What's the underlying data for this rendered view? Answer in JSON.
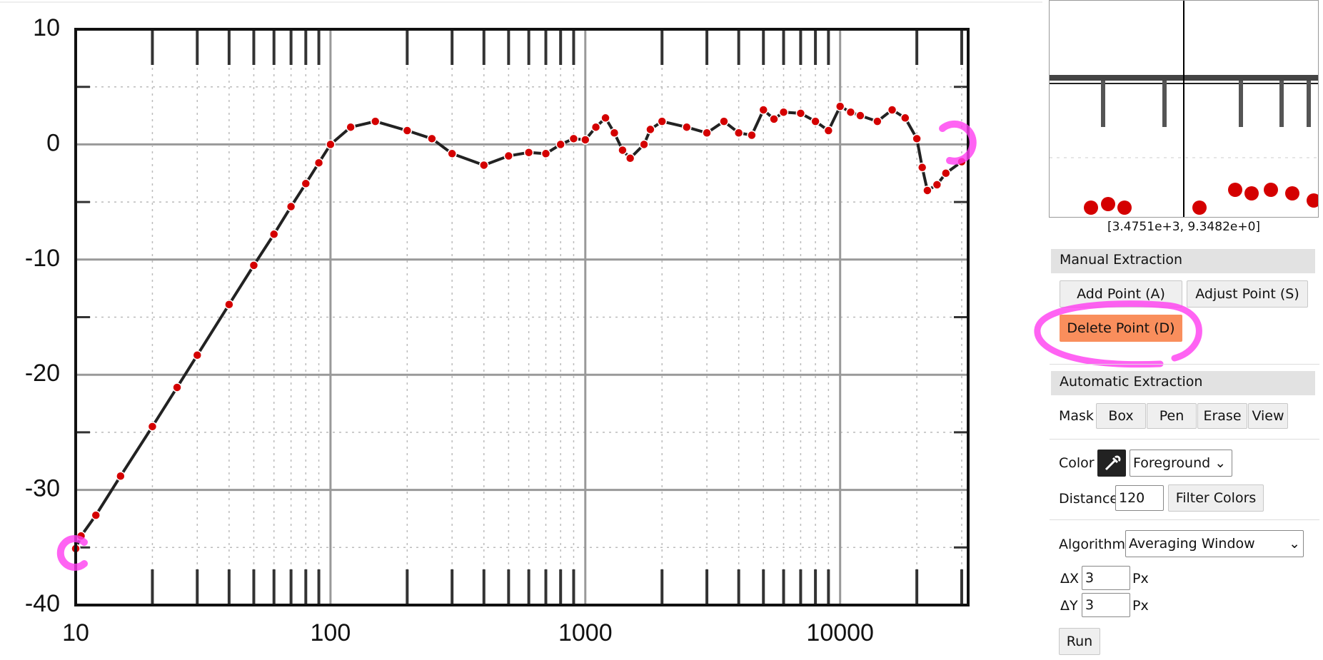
{
  "chart_data": {
    "type": "scatter",
    "log_x": true,
    "grid": true,
    "color": "#d40000",
    "xlim": [
      10,
      31800
    ],
    "ylim": [
      -40,
      10
    ],
    "xticks": [
      10,
      100,
      1000,
      10000
    ],
    "yticks": [
      10,
      0,
      -10,
      -20,
      -30,
      -40
    ],
    "x_minor_ticks": [
      20,
      30,
      40,
      50,
      60,
      70,
      80,
      90,
      200,
      300,
      400,
      500,
      600,
      700,
      800,
      900,
      2000,
      3000,
      4000,
      5000,
      6000,
      7000,
      8000,
      9000,
      20000,
      30000
    ],
    "y_minor_ticks": [
      5,
      -5,
      -15,
      -25,
      -35
    ],
    "x": [
      10,
      10.5,
      12,
      15,
      20,
      25,
      30,
      40,
      50,
      60,
      70,
      80,
      90,
      100,
      120,
      150,
      200,
      250,
      300,
      400,
      500,
      600,
      700,
      800,
      900,
      1000,
      1100,
      1200,
      1300,
      1400,
      1500,
      1700,
      1800,
      2000,
      2500,
      3000,
      3500,
      4000,
      4500,
      5000,
      5500,
      6000,
      7000,
      8000,
      9000,
      10000,
      11000,
      12000,
      14000,
      16000,
      18000,
      20000,
      21000,
      22000,
      24000,
      26000,
      30000
    ],
    "values": [
      -35.1,
      -34,
      -32.2,
      -28.8,
      -24.5,
      -21.1,
      -18.3,
      -13.9,
      -10.5,
      -7.8,
      -5.4,
      -3.4,
      -1.6,
      0,
      1.5,
      2,
      1.2,
      0.5,
      -0.8,
      -1.8,
      -1,
      -0.7,
      -0.8,
      0,
      0.5,
      0.4,
      1.5,
      2.3,
      1,
      -0.5,
      -1.2,
      0,
      1.3,
      2,
      1.5,
      1,
      2,
      1,
      0.8,
      3,
      2.2,
      2.8,
      2.7,
      2,
      1.2,
      3.3,
      2.8,
      2.5,
      2,
      3,
      2.3,
      0.5,
      -2,
      -4,
      -3.5,
      -2.5,
      -1.5
    ]
  },
  "magnifier": {
    "coordinates": "[3.4751e+3, 9.3482e+0]"
  },
  "sidebar": {
    "manual": {
      "title": "Manual Extraction",
      "add": "Add Point (A)",
      "adjust": "Adjust Point (S)",
      "delete": "Delete Point (D)"
    },
    "automatic": {
      "title": "Automatic Extraction",
      "mask_label": "Mask",
      "mask_buttons": [
        "Box",
        "Pen",
        "Erase",
        "View"
      ],
      "color_label": "Color",
      "color_mode": "Foreground",
      "distance_label": "Distance",
      "distance": "120",
      "filter": "Filter Colors",
      "algorithm_label": "Algorithm",
      "algorithm": "Averaging Window",
      "dx_label": "ΔX",
      "dx": "3",
      "dy_label": "ΔY",
      "dy": "3",
      "unit": "Px",
      "run": "Run"
    }
  }
}
